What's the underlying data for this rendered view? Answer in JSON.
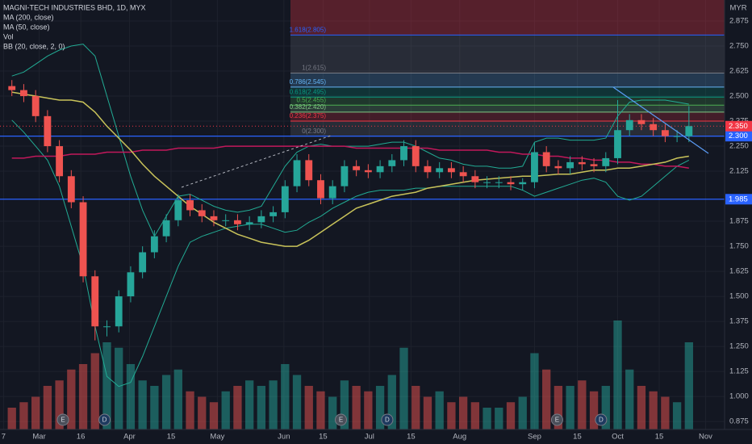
{
  "chart_data": {
    "type": "candlestick",
    "title": "MAGNI-TECH INDUSTRIES BHD, 1D, MYX",
    "currency": "MYR",
    "up_color": "#26a69a",
    "down_color": "#ef5350",
    "xlim": [
      -1,
      60
    ],
    "xticks": [
      {
        "value": -0.7,
        "label": "7"
      },
      {
        "value": 2.3,
        "label": "Mar"
      },
      {
        "value": 5.8,
        "label": "16"
      },
      {
        "value": 9.9,
        "label": "Apr"
      },
      {
        "value": 13.4,
        "label": "15"
      },
      {
        "value": 17.3,
        "label": "May"
      },
      {
        "value": 22.9,
        "label": "Jun"
      },
      {
        "value": 26.2,
        "label": "15"
      },
      {
        "value": 30.1,
        "label": "Jul"
      },
      {
        "value": 33.6,
        "label": "15"
      },
      {
        "value": 37.7,
        "label": "Aug"
      },
      {
        "value": 44.0,
        "label": "Sep"
      },
      {
        "value": 47.6,
        "label": "15"
      },
      {
        "value": 51.0,
        "label": "Oct"
      },
      {
        "value": 54.5,
        "label": "15"
      },
      {
        "value": 58.4,
        "label": "Nov"
      }
    ],
    "ylim": [
      0.835,
      2.98
    ],
    "yticks": [
      {
        "value": 2.875,
        "label": "2.875"
      },
      {
        "value": 2.75,
        "label": "2.750"
      },
      {
        "value": 2.625,
        "label": "2.625"
      },
      {
        "value": 2.5,
        "label": "2.500"
      },
      {
        "value": 2.375,
        "label": "2.375"
      },
      {
        "value": 2.25,
        "label": "2.250"
      },
      {
        "value": 2.125,
        "label": "2.125"
      },
      {
        "value": 1.875,
        "label": "1.875"
      },
      {
        "value": 1.75,
        "label": "1.750"
      },
      {
        "value": 1.625,
        "label": "1.625"
      },
      {
        "value": 1.5,
        "label": "1.500"
      },
      {
        "value": 1.375,
        "label": "1.375"
      },
      {
        "value": 1.25,
        "label": "1.250"
      },
      {
        "value": 1.125,
        "label": "1.125"
      },
      {
        "value": 1.0,
        "label": "1.000"
      },
      {
        "value": 0.875,
        "label": "0.875"
      }
    ],
    "grid": true,
    "open": [
      2.55,
      2.53,
      2.5,
      2.4,
      2.25,
      2.1,
      1.97,
      1.6,
      1.35,
      1.35,
      1.5,
      1.62,
      1.72,
      1.8,
      1.88,
      1.98,
      1.93,
      1.9,
      1.88,
      1.88,
      1.86,
      1.87,
      1.9,
      1.92,
      2.05,
      2.18,
      2.08,
      1.99,
      2.05,
      2.15,
      2.13,
      2.12,
      2.15,
      2.18,
      2.25,
      2.15,
      2.12,
      2.14,
      2.12,
      2.1,
      2.07,
      2.07,
      2.07,
      2.06,
      2.07,
      2.22,
      2.15,
      2.14,
      2.17,
      2.16,
      2.15,
      2.19,
      2.33,
      2.38,
      2.36,
      2.33,
      2.3,
      2.3
    ],
    "high": [
      2.58,
      2.56,
      2.53,
      2.43,
      2.28,
      2.13,
      2.0,
      1.63,
      1.38,
      1.53,
      1.65,
      1.75,
      1.83,
      1.91,
      2.01,
      2.01,
      1.96,
      1.93,
      1.91,
      1.91,
      1.9,
      1.93,
      1.95,
      2.08,
      2.21,
      2.21,
      2.11,
      2.08,
      2.18,
      2.18,
      2.16,
      2.18,
      2.21,
      2.28,
      2.28,
      2.18,
      2.17,
      2.17,
      2.15,
      2.13,
      2.1,
      2.1,
      2.1,
      2.09,
      2.27,
      2.25,
      2.18,
      2.2,
      2.2,
      2.19,
      2.22,
      2.48,
      2.41,
      2.41,
      2.39,
      2.36,
      2.33,
      2.45
    ],
    "low": [
      2.5,
      2.47,
      2.37,
      2.22,
      2.07,
      1.94,
      1.57,
      1.28,
      1.3,
      1.32,
      1.47,
      1.59,
      1.69,
      1.77,
      1.85,
      1.9,
      1.87,
      1.85,
      1.85,
      1.83,
      1.83,
      1.84,
      1.87,
      1.89,
      2.02,
      2.05,
      1.96,
      1.96,
      2.02,
      2.1,
      2.09,
      2.09,
      2.12,
      2.15,
      2.12,
      2.09,
      2.09,
      2.09,
      2.07,
      2.04,
      2.04,
      2.04,
      2.03,
      2.03,
      2.04,
      2.12,
      2.11,
      2.11,
      2.13,
      2.12,
      2.12,
      2.16,
      2.3,
      2.33,
      2.3,
      2.27,
      2.27,
      2.27
    ],
    "close": [
      2.53,
      2.5,
      2.4,
      2.25,
      2.1,
      1.97,
      1.6,
      1.35,
      1.35,
      1.5,
      1.62,
      1.72,
      1.8,
      1.88,
      1.98,
      1.93,
      1.9,
      1.88,
      1.88,
      1.86,
      1.87,
      1.9,
      1.92,
      2.05,
      2.18,
      2.08,
      1.99,
      2.05,
      2.15,
      2.13,
      2.12,
      2.15,
      2.18,
      2.25,
      2.15,
      2.12,
      2.14,
      2.12,
      2.1,
      2.07,
      2.07,
      2.07,
      2.06,
      2.07,
      2.22,
      2.15,
      2.14,
      2.17,
      2.16,
      2.15,
      2.19,
      2.33,
      2.38,
      2.36,
      2.33,
      2.3,
      2.3,
      2.35
    ],
    "volume": {
      "name": "Vol",
      "values": [
        20,
        25,
        30,
        40,
        45,
        55,
        60,
        70,
        80,
        75,
        60,
        45,
        40,
        50,
        55,
        35,
        30,
        25,
        35,
        40,
        45,
        40,
        45,
        60,
        50,
        40,
        35,
        30,
        45,
        40,
        35,
        40,
        50,
        75,
        40,
        30,
        35,
        25,
        30,
        25,
        20,
        20,
        25,
        30,
        70,
        55,
        40,
        40,
        45,
        35,
        40,
        100,
        55,
        40,
        35,
        30,
        25,
        80
      ]
    },
    "series": [
      {
        "name": "MA (200, close)",
        "color": "#c2185b",
        "values": [
          2.19,
          2.19,
          2.2,
          2.2,
          2.2,
          2.21,
          2.21,
          2.21,
          2.22,
          2.22,
          2.22,
          2.23,
          2.23,
          2.23,
          2.24,
          2.24,
          2.24,
          2.24,
          2.25,
          2.25,
          2.25,
          2.25,
          2.25,
          2.25,
          2.25,
          2.25,
          2.25,
          2.25,
          2.25,
          2.24,
          2.24,
          2.24,
          2.24,
          2.24,
          2.24,
          2.24,
          2.23,
          2.23,
          2.23,
          2.23,
          2.23,
          2.22,
          2.22,
          2.21,
          2.21,
          2.2,
          2.2,
          2.19,
          2.19,
          2.18,
          2.18,
          2.17,
          2.17,
          2.16,
          2.16,
          2.15,
          2.15,
          2.14
        ]
      },
      {
        "name": "MA (50, close)",
        "color": "#c9c35a",
        "values": [
          2.52,
          2.51,
          2.5,
          2.49,
          2.48,
          2.48,
          2.47,
          2.42,
          2.35,
          2.29,
          2.23,
          2.16,
          2.1,
          2.05,
          2.0,
          1.95,
          1.91,
          1.87,
          1.84,
          1.81,
          1.79,
          1.77,
          1.76,
          1.75,
          1.75,
          1.78,
          1.82,
          1.86,
          1.9,
          1.94,
          1.96,
          1.98,
          2.0,
          2.01,
          2.02,
          2.04,
          2.05,
          2.06,
          2.07,
          2.08,
          2.085,
          2.09,
          2.095,
          2.1,
          2.1,
          2.105,
          2.11,
          2.11,
          2.12,
          2.13,
          2.13,
          2.14,
          2.14,
          2.15,
          2.16,
          2.17,
          2.19,
          2.2
        ]
      }
    ],
    "bollinger": {
      "name": "BB (20, close, 2, 0)",
      "color": "#22ab94",
      "upper": [
        2.6,
        2.62,
        2.66,
        2.7,
        2.73,
        2.75,
        2.76,
        2.7,
        2.5,
        2.3,
        2.1,
        1.93,
        1.8,
        1.9,
        2.0,
        2.01,
        1.98,
        1.95,
        1.93,
        1.92,
        1.93,
        1.95,
        2.05,
        2.15,
        2.22,
        2.25,
        2.26,
        2.25,
        2.25,
        2.25,
        2.25,
        2.26,
        2.27,
        2.27,
        2.25,
        2.22,
        2.19,
        2.18,
        2.16,
        2.15,
        2.15,
        2.14,
        2.14,
        2.15,
        2.27,
        2.29,
        2.29,
        2.28,
        2.28,
        2.28,
        2.29,
        2.4,
        2.47,
        2.48,
        2.48,
        2.48,
        2.47,
        2.46
      ],
      "lower": [
        2.38,
        2.32,
        2.25,
        2.18,
        2.05,
        1.85,
        1.65,
        1.35,
        1.1,
        1.05,
        1.07,
        1.2,
        1.35,
        1.5,
        1.65,
        1.77,
        1.8,
        1.82,
        1.84,
        1.85,
        1.86,
        1.86,
        1.84,
        1.82,
        1.83,
        1.87,
        1.9,
        1.94,
        1.97,
        2.0,
        2.02,
        2.03,
        2.03,
        2.03,
        2.04,
        2.04,
        2.05,
        2.05,
        2.05,
        2.05,
        2.05,
        2.05,
        2.05,
        2.03,
        2.0,
        2.02,
        2.04,
        2.06,
        2.08,
        2.09,
        2.07,
        2.0,
        1.98,
        2.0,
        2.05,
        2.1,
        2.15,
        2.18
      ]
    },
    "fib": {
      "above_color": "#f23645",
      "levels": [
        {
          "label": "1.618(2.805)",
          "value": 2.805,
          "color": "#2962ff"
        },
        {
          "label": "1(2.615)",
          "value": 2.615,
          "color": "#787b86"
        },
        {
          "label": "0.786(2.545)",
          "value": 2.545,
          "color": "#64b5f6"
        },
        {
          "label": "0.618(2.495)",
          "value": 2.495,
          "color": "#089981"
        },
        {
          "label": "0.5(2.455)",
          "value": 2.455,
          "color": "#4caf50"
        },
        {
          "label": "0.382(2.420)",
          "value": 2.42,
          "color": "#81c784"
        },
        {
          "label": "0.236(2.375)",
          "value": 2.375,
          "color": "#f23645"
        },
        {
          "label": "0(2.300)",
          "value": 2.3,
          "color": "#787b86"
        }
      ]
    },
    "hlines": [
      {
        "value": 2.3,
        "label": "2.300",
        "color": "#2962ff"
      },
      {
        "value": 1.985,
        "label": "1.985",
        "color": "#2962ff"
      }
    ],
    "last_price": {
      "value": 2.35,
      "label": "2.350",
      "color": "#f23645"
    },
    "events": [
      {
        "label": "E",
        "x": 4.3,
        "color": "#4a4e59"
      },
      {
        "label": "D",
        "x": 7.8,
        "color": "#1e3a5f"
      },
      {
        "label": "E",
        "x": 27.7,
        "color": "#4a4e59"
      },
      {
        "label": "D",
        "x": 31.6,
        "color": "#1e3a5f"
      },
      {
        "label": "E",
        "x": 45.9,
        "color": "#4a4e59"
      },
      {
        "label": "D",
        "x": 49.6,
        "color": "#1e3a5f"
      }
    ]
  }
}
